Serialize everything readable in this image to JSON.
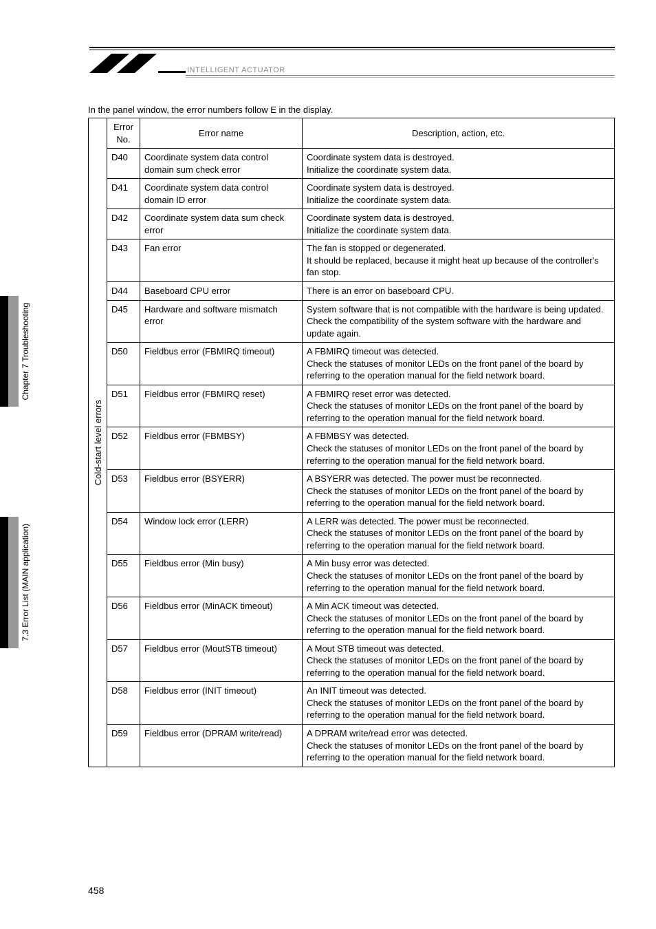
{
  "header": {
    "logo_text": "INTELLIGENT ACTUATOR"
  },
  "intro": "In the panel window, the error numbers follow E in the display.",
  "sidebar_label": "Cold-start level errors",
  "columns": {
    "no": "Error\nNo.",
    "name": "Error name",
    "desc": "Description, action, etc."
  },
  "rows": [
    {
      "no": "D40",
      "name": "Coordinate system data control domain sum check error",
      "desc": "Coordinate system data is destroyed.\nInitialize the coordinate system data."
    },
    {
      "no": "D41",
      "name": "Coordinate system data control domain ID error",
      "desc": "Coordinate system data is destroyed.\nInitialize the coordinate system data."
    },
    {
      "no": "D42",
      "name": "Coordinate system data sum check error",
      "desc": "Coordinate system data is destroyed.\nInitialize the coordinate system data."
    },
    {
      "no": "D43",
      "name": "Fan error",
      "desc": "The fan is stopped or degenerated.\nIt should be replaced, because it might heat up because of the controller's fan stop."
    },
    {
      "no": "D44",
      "name": "Baseboard CPU error",
      "desc": "There is an error on baseboard CPU."
    },
    {
      "no": "D45",
      "name": "Hardware and software mismatch error",
      "desc": "System software that is not compatible with the hardware is being updated.\nCheck the compatibility of the system software with the hardware and update again."
    },
    {
      "no": "D50",
      "name": "Fieldbus error (FBMIRQ timeout)",
      "desc": "A FBMIRQ timeout was detected.\nCheck the statuses of monitor LEDs on the front panel of the board by referring to the operation manual for the field network board."
    },
    {
      "no": "D51",
      "name": "Fieldbus error (FBMIRQ reset)",
      "desc": "A FBMIRQ reset error was detected.\nCheck the statuses of monitor LEDs on the front panel of the board by referring to the operation manual for the field network board."
    },
    {
      "no": "D52",
      "name": "Fieldbus error (FBMBSY)",
      "desc": "A FBMBSY was detected.\nCheck the statuses of monitor LEDs on the front panel of the board by referring to the operation manual for the field network board."
    },
    {
      "no": "D53",
      "name": "Fieldbus error (BSYERR)",
      "desc": "A BSYERR was detected. The power must be reconnected.\nCheck the statuses of monitor LEDs on the front panel of the board by referring to the operation manual for the field network board."
    },
    {
      "no": "D54",
      "name": "Window lock error (LERR)",
      "desc": "A LERR was detected. The power must be reconnected.\nCheck the statuses of monitor LEDs on the front panel of the board by referring to the operation manual for the field network board."
    },
    {
      "no": "D55",
      "name": "Fieldbus error (Min busy)",
      "desc": "A Min busy error was detected.\nCheck the statuses of monitor LEDs on the front panel of the board by referring to the operation manual for the field network board."
    },
    {
      "no": "D56",
      "name": "Fieldbus error (MinACK timeout)",
      "desc": "A Min ACK timeout was detected.\nCheck the statuses of monitor LEDs on the front panel of the board by referring to the operation manual for the field network board."
    },
    {
      "no": "D57",
      "name": "Fieldbus error (MoutSTB timeout)",
      "desc": "A Mout STB timeout was detected.\nCheck the statuses of monitor LEDs on the front panel of the board by referring to the operation manual for the field network board."
    },
    {
      "no": "D58",
      "name": "Fieldbus error (INIT timeout)",
      "desc": "An INIT timeout was detected.\nCheck the statuses of monitor LEDs on the front panel of the board by referring to the operation manual for the field network board."
    },
    {
      "no": "D59",
      "name": "Fieldbus error (DPRAM write/read)",
      "desc": "A DPRAM write/read error was detected.\nCheck the statuses of monitor LEDs on the front panel of the board by referring to the operation manual for the field network board."
    }
  ],
  "side_tabs": [
    "Chapter 7 Troubleshooting",
    "7.3 Error List (MAIN application)"
  ],
  "page_num": "458"
}
